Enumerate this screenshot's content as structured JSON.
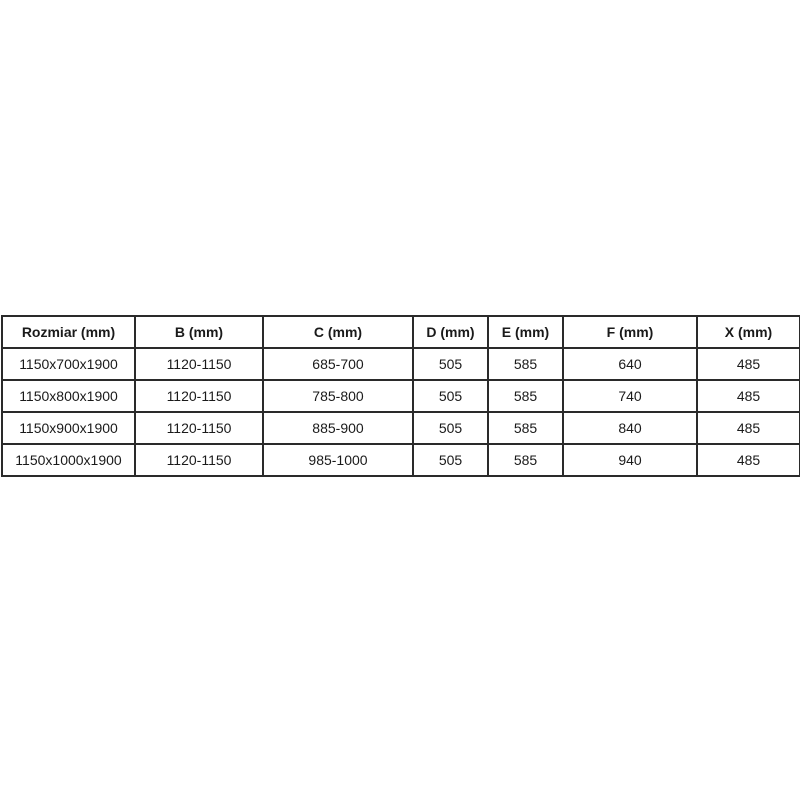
{
  "table": {
    "headers": [
      "Rozmiar (mm)",
      "B (mm)",
      "C (mm)",
      "D (mm)",
      "E (mm)",
      "F (mm)",
      "X (mm)"
    ],
    "rows": [
      [
        "1150x700x1900",
        "1120-1150",
        "685-700",
        "505",
        "585",
        "640",
        "485"
      ],
      [
        "1150x800x1900",
        "1120-1150",
        "785-800",
        "505",
        "585",
        "740",
        "485"
      ],
      [
        "1150x900x1900",
        "1120-1150",
        "885-900",
        "505",
        "585",
        "840",
        "485"
      ],
      [
        "1150x1000x1900",
        "1120-1150",
        "985-1000",
        "505",
        "585",
        "940",
        "485"
      ]
    ]
  }
}
